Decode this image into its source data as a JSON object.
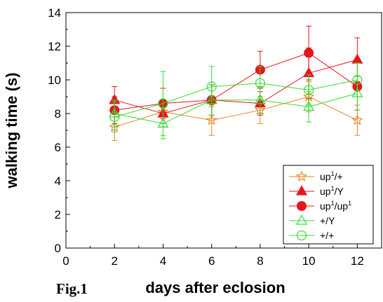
{
  "figure_label": "Fig.1",
  "chart_data": {
    "type": "line",
    "xlabel": "days after eclosion",
    "ylabel": "walking time (s)",
    "xlim": [
      0,
      13
    ],
    "ylim": [
      0,
      14
    ],
    "xticks": [
      0,
      2,
      4,
      6,
      8,
      10,
      12
    ],
    "yticks": [
      0,
      2,
      4,
      6,
      8,
      10,
      12,
      14
    ],
    "grid": false,
    "legend_position": "bottom-right",
    "x": [
      2,
      4,
      6,
      8,
      10,
      12
    ],
    "series": [
      {
        "name": "up¹/+",
        "legend": {
          "base": "up",
          "sup": "1",
          "rest": "/+"
        },
        "color": "#e8821e",
        "marker": "star-open",
        "values": [
          7.2,
          8.1,
          7.6,
          8.2,
          9.0,
          7.6
        ],
        "errors": [
          0.8,
          0.7,
          0.9,
          0.8,
          0.9,
          0.9
        ]
      },
      {
        "name": "up¹/Y",
        "legend": {
          "base": "up",
          "sup": "1",
          "rest": "/Y"
        },
        "color": "#e8151b",
        "marker": "triangle-filled",
        "values": [
          8.8,
          8.0,
          8.8,
          8.6,
          10.4,
          11.2
        ],
        "errors": [
          0.8,
          0.8,
          0.9,
          0.7,
          1.5,
          1.3
        ]
      },
      {
        "name": "up¹/up¹",
        "legend": {
          "base": "up",
          "sup": "1",
          "rest": "/up",
          "sup2": "1"
        },
        "color": "#e8151b",
        "marker": "circle-filled",
        "values": [
          8.2,
          8.6,
          8.8,
          10.6,
          11.6,
          9.6
        ],
        "errors": [
          0.8,
          0.9,
          0.9,
          1.1,
          1.6,
          1.4
        ]
      },
      {
        "name": "+/Y",
        "legend": {
          "base": "+/Y"
        },
        "color": "#33dd33",
        "marker": "triangle-open",
        "values": [
          8.0,
          7.4,
          8.8,
          8.8,
          8.4,
          9.2
        ],
        "errors": [
          0.8,
          0.9,
          0.9,
          0.8,
          0.9,
          1.0
        ]
      },
      {
        "name": "+/+",
        "legend": {
          "base": "+/+"
        },
        "color": "#33dd33",
        "marker": "circle-open",
        "values": [
          7.8,
          8.6,
          9.6,
          9.8,
          9.4,
          10.0
        ],
        "errors": [
          0.9,
          1.9,
          1.2,
          1.0,
          0.9,
          1.0
        ]
      }
    ]
  }
}
